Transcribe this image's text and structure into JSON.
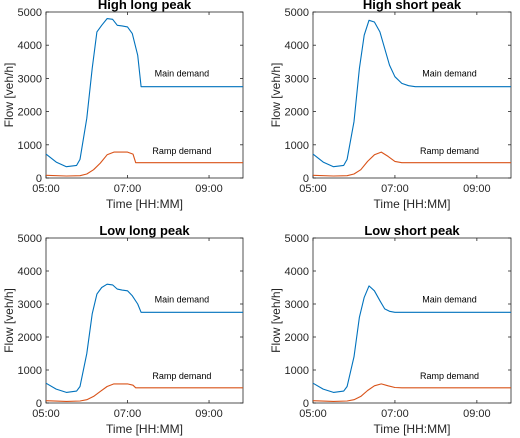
{
  "colors": {
    "main": "#0072BD",
    "ramp": "#D95319",
    "axis": "#262626"
  },
  "chart_data": [
    {
      "type": "line",
      "title": "High long peak",
      "xlabel": "Time [HH:MM]",
      "ylabel": "Flow [veh/h]",
      "xlim": [
        "05:00",
        "09:50"
      ],
      "ylim": [
        0,
        5000
      ],
      "xticks": [
        "05:00",
        "07:00",
        "09:00"
      ],
      "yticks": [
        0,
        1000,
        2000,
        3000,
        4000,
        5000
      ],
      "series": [
        {
          "name": "Main demand",
          "x": [
            "05:00",
            "05:15",
            "05:30",
            "05:45",
            "05:50",
            "06:00",
            "06:08",
            "06:15",
            "06:22",
            "06:30",
            "06:38",
            "06:45",
            "06:52",
            "07:00",
            "07:07",
            "07:15",
            "07:20",
            "09:50"
          ],
          "y": [
            720,
            480,
            340,
            380,
            560,
            1800,
            3300,
            4400,
            4600,
            4800,
            4780,
            4600,
            4580,
            4550,
            4350,
            3700,
            2750,
            2750
          ]
        },
        {
          "name": "Ramp demand",
          "x": [
            "05:00",
            "05:30",
            "05:50",
            "06:00",
            "06:10",
            "06:20",
            "06:30",
            "06:40",
            "07:00",
            "07:08",
            "07:12",
            "09:50"
          ],
          "y": [
            80,
            60,
            70,
            120,
            250,
            450,
            700,
            780,
            780,
            720,
            460,
            460
          ]
        }
      ],
      "annotations": [
        {
          "text": "Main demand",
          "x": "08:20",
          "y": 3050
        },
        {
          "text": "Ramp demand",
          "x": "08:20",
          "y": 720
        }
      ]
    },
    {
      "type": "line",
      "title": "High short peak",
      "xlabel": "Time [HH:MM]",
      "ylabel": "Flow [veh/h]",
      "xlim": [
        "05:00",
        "09:50"
      ],
      "ylim": [
        0,
        5000
      ],
      "xticks": [
        "05:00",
        "07:00",
        "09:00"
      ],
      "yticks": [
        0,
        1000,
        2000,
        3000,
        4000,
        5000
      ],
      "series": [
        {
          "name": "Main demand",
          "x": [
            "05:00",
            "05:15",
            "05:30",
            "05:45",
            "05:50",
            "06:00",
            "06:08",
            "06:15",
            "06:22",
            "06:30",
            "06:38",
            "06:45",
            "06:52",
            "07:00",
            "07:10",
            "07:20",
            "07:30",
            "09:50"
          ],
          "y": [
            720,
            480,
            340,
            380,
            560,
            1700,
            3300,
            4300,
            4750,
            4700,
            4400,
            3900,
            3400,
            3050,
            2850,
            2780,
            2750,
            2750
          ]
        },
        {
          "name": "Ramp demand",
          "x": [
            "05:00",
            "05:30",
            "05:50",
            "06:00",
            "06:10",
            "06:20",
            "06:30",
            "06:40",
            "06:50",
            "07:00",
            "07:10",
            "09:50"
          ],
          "y": [
            80,
            60,
            70,
            120,
            250,
            500,
            700,
            780,
            650,
            500,
            460,
            460
          ]
        }
      ],
      "annotations": [
        {
          "text": "Main demand",
          "x": "08:20",
          "y": 3050
        },
        {
          "text": "Ramp demand",
          "x": "08:20",
          "y": 720
        }
      ]
    },
    {
      "type": "line",
      "title": "Low long peak",
      "xlabel": "Time [HH:MM]",
      "ylabel": "Flow [veh/h]",
      "xlim": [
        "05:00",
        "09:50"
      ],
      "ylim": [
        0,
        5000
      ],
      "xticks": [
        "05:00",
        "07:00",
        "09:00"
      ],
      "yticks": [
        0,
        1000,
        2000,
        3000,
        4000,
        5000
      ],
      "series": [
        {
          "name": "Main demand",
          "x": [
            "05:00",
            "05:15",
            "05:30",
            "05:45",
            "05:50",
            "06:00",
            "06:08",
            "06:15",
            "06:22",
            "06:30",
            "06:38",
            "06:45",
            "06:52",
            "07:00",
            "07:07",
            "07:15",
            "07:20",
            "09:50"
          ],
          "y": [
            600,
            420,
            320,
            360,
            500,
            1500,
            2700,
            3300,
            3500,
            3600,
            3580,
            3450,
            3420,
            3400,
            3250,
            3000,
            2750,
            2750
          ]
        },
        {
          "name": "Ramp demand",
          "x": [
            "05:00",
            "05:30",
            "05:50",
            "06:00",
            "06:10",
            "06:20",
            "06:30",
            "06:40",
            "07:00",
            "07:08",
            "07:12",
            "09:50"
          ],
          "y": [
            70,
            50,
            60,
            100,
            200,
            350,
            500,
            580,
            580,
            540,
            460,
            460
          ]
        }
      ],
      "annotations": [
        {
          "text": "Main demand",
          "x": "08:20",
          "y": 3050
        },
        {
          "text": "Ramp demand",
          "x": "08:20",
          "y": 720
        }
      ]
    },
    {
      "type": "line",
      "title": "Low short peak",
      "xlabel": "Time [HH:MM]",
      "ylabel": "Flow [veh/h]",
      "xlim": [
        "05:00",
        "09:50"
      ],
      "ylim": [
        0,
        5000
      ],
      "xticks": [
        "05:00",
        "07:00",
        "09:00"
      ],
      "yticks": [
        0,
        1000,
        2000,
        3000,
        4000,
        5000
      ],
      "series": [
        {
          "name": "Main demand",
          "x": [
            "05:00",
            "05:15",
            "05:30",
            "05:45",
            "05:50",
            "06:00",
            "06:08",
            "06:15",
            "06:22",
            "06:30",
            "06:38",
            "06:45",
            "06:52",
            "07:00",
            "07:10",
            "09:50"
          ],
          "y": [
            600,
            420,
            320,
            360,
            500,
            1400,
            2600,
            3200,
            3550,
            3400,
            3100,
            2850,
            2780,
            2750,
            2750,
            2750
          ]
        },
        {
          "name": "Ramp demand",
          "x": [
            "05:00",
            "05:30",
            "05:50",
            "06:00",
            "06:10",
            "06:20",
            "06:30",
            "06:40",
            "06:50",
            "07:00",
            "07:10",
            "09:50"
          ],
          "y": [
            70,
            50,
            60,
            100,
            200,
            380,
            520,
            580,
            520,
            470,
            460,
            460
          ]
        }
      ],
      "annotations": [
        {
          "text": "Main demand",
          "x": "08:20",
          "y": 3050
        },
        {
          "text": "Ramp demand",
          "x": "08:20",
          "y": 720
        }
      ]
    }
  ]
}
